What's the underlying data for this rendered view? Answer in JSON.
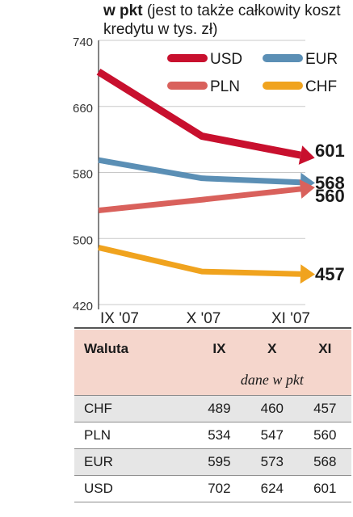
{
  "title": {
    "bold": "w pkt",
    "rest": " (jest to także całkowity koszt kredytu w tys. zł)"
  },
  "colors": {
    "USD": "#c8102e",
    "EUR": "#5b8fb5",
    "PLN": "#d9615c",
    "CHF": "#f0a31e"
  },
  "chart_data": {
    "type": "line",
    "categories": [
      "IX '07",
      "X '07",
      "XI '07"
    ],
    "yticks": [
      420,
      500,
      580,
      660,
      740
    ],
    "ylim": [
      420,
      740
    ],
    "grid": true,
    "legend": "top-right",
    "series": [
      {
        "name": "USD",
        "values": [
          702,
          624,
          601
        ],
        "end_label": "601"
      },
      {
        "name": "EUR",
        "values": [
          595,
          573,
          568
        ],
        "end_label": "568"
      },
      {
        "name": "PLN",
        "values": [
          534,
          547,
          560
        ],
        "end_label": "560"
      },
      {
        "name": "CHF",
        "values": [
          489,
          460,
          457
        ],
        "end_label": "457"
      }
    ]
  },
  "table": {
    "headers": [
      "Waluta",
      "IX",
      "X",
      "XI"
    ],
    "note": "dane w pkt",
    "rows": [
      [
        "CHF",
        "489",
        "460",
        "457"
      ],
      [
        "PLN",
        "534",
        "547",
        "560"
      ],
      [
        "EUR",
        "595",
        "573",
        "568"
      ],
      [
        "USD",
        "702",
        "624",
        "601"
      ]
    ]
  }
}
